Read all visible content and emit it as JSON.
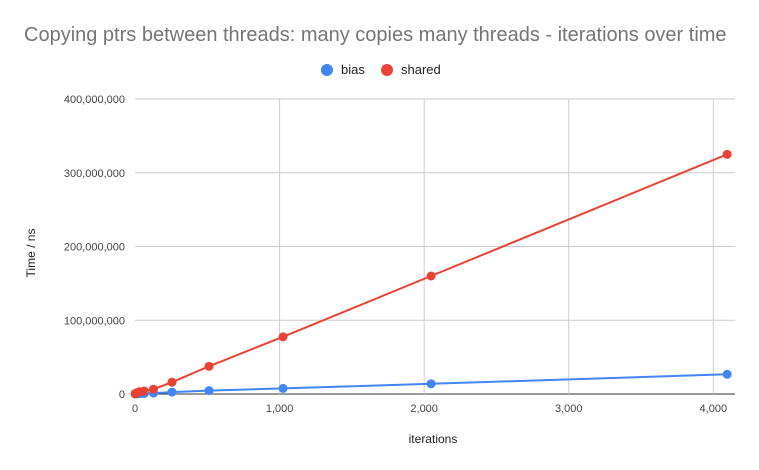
{
  "chart_data": {
    "type": "line",
    "title": "Copying ptrs between threads: many copies many threads - iterations over time",
    "xlabel": "iterations",
    "ylabel": "Time / ns",
    "xlim": [
      0,
      4150
    ],
    "ylim": [
      0,
      400000000
    ],
    "x_ticks": [
      0,
      1000,
      2000,
      3000,
      4000
    ],
    "x_tick_labels": [
      "0",
      "1,000",
      "2,000",
      "3,000",
      "4,000"
    ],
    "y_ticks": [
      0,
      100000000,
      200000000,
      300000000,
      400000000
    ],
    "y_tick_labels": [
      "0",
      "100,000,000",
      "200,000,000",
      "300,000,000",
      "400,000,000"
    ],
    "grid": true,
    "legend_position": "top",
    "x": [
      1,
      2,
      4,
      8,
      16,
      32,
      64,
      128,
      256,
      512,
      1024,
      2048,
      4096
    ],
    "series": [
      {
        "name": "bias",
        "color": "#4285f4",
        "values": [
          100000,
          150000,
          200000,
          250000,
          350000,
          500000,
          700000,
          1200000,
          2600000,
          4600000,
          7600000,
          13800000,
          26700000
        ]
      },
      {
        "name": "shared",
        "color": "#ea4335",
        "values": [
          300000,
          450000,
          700000,
          1100000,
          2000000,
          3200000,
          4000000,
          6500000,
          16000000,
          37500000,
          77500000,
          160000000,
          325000000
        ]
      }
    ]
  }
}
